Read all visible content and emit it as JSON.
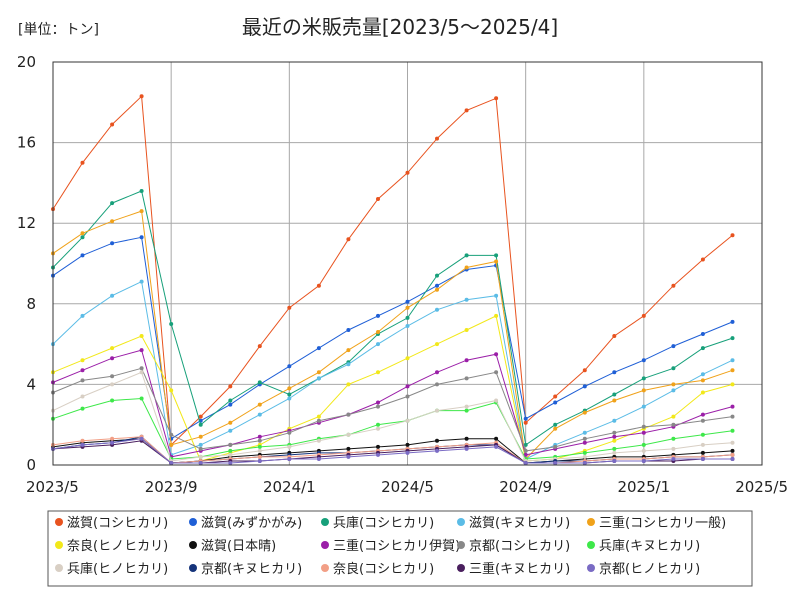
{
  "unit_label": "[単位：トン]",
  "chart_data": {
    "type": "line",
    "title": "最近の米販売量[2023/5～2025/4]",
    "xlabel": "",
    "ylabel": "",
    "ylim": [
      0,
      20
    ],
    "yticks": [
      0,
      4,
      8,
      12,
      16,
      20
    ],
    "ytick_labels": [
      "0",
      "4",
      "8",
      "12",
      "16",
      "20"
    ],
    "xlim": [
      "2023/5",
      "2025/5"
    ],
    "xticks": [
      "2023/5",
      "2023/9",
      "2024/1",
      "2024/5",
      "2024/9",
      "2025/1",
      "2025/5"
    ],
    "xtick_labels": [
      "2023/5",
      "2023/9",
      "2024/1",
      "2024/5",
      "2024/9",
      "2025/1",
      "2025/5"
    ],
    "grid": true,
    "legend_position": "bottom",
    "x": [
      "2023/5",
      "2023/6",
      "2023/7",
      "2023/8",
      "2023/9",
      "2023/10",
      "2023/11",
      "2023/12",
      "2024/1",
      "2024/2",
      "2024/3",
      "2024/4",
      "2024/5",
      "2024/6",
      "2024/7",
      "2024/8",
      "2024/9",
      "2024/10",
      "2024/11",
      "2024/12",
      "2025/1",
      "2025/2",
      "2025/3",
      "2025/4"
    ],
    "series": [
      {
        "name": "滋賀(コシヒカリ)",
        "color": "#e8531f",
        "values": [
          12.7,
          15.0,
          16.9,
          18.3,
          1.0,
          2.4,
          3.9,
          5.9,
          7.8,
          8.9,
          11.2,
          13.2,
          14.5,
          16.2,
          17.6,
          18.2,
          2.1,
          3.4,
          4.7,
          6.4,
          7.4,
          8.9,
          10.2,
          11.4
        ]
      },
      {
        "name": "滋賀(みずかがみ)",
        "color": "#1f5fd6",
        "values": [
          9.4,
          10.4,
          11.0,
          11.3,
          1.3,
          2.2,
          3.0,
          4.0,
          4.9,
          5.8,
          6.7,
          7.4,
          8.1,
          8.9,
          9.7,
          9.9,
          2.3,
          3.1,
          3.9,
          4.6,
          5.2,
          5.9,
          6.5,
          7.1
        ]
      },
      {
        "name": "兵庫(コシヒカリ)",
        "color": "#17a07a",
        "values": [
          9.8,
          11.3,
          13.0,
          13.6,
          7.0,
          2.0,
          3.2,
          4.1,
          3.5,
          4.3,
          5.1,
          6.5,
          7.3,
          9.4,
          10.4,
          10.4,
          1.0,
          2.0,
          2.7,
          3.5,
          4.3,
          4.8,
          5.8,
          6.3
        ]
      },
      {
        "name": "滋賀(キヌヒカリ)",
        "color": "#5bbce6",
        "values": [
          6.0,
          7.4,
          8.4,
          9.1,
          0.5,
          1.0,
          1.7,
          2.5,
          3.3,
          4.3,
          5.0,
          6.0,
          6.9,
          7.7,
          8.2,
          8.4,
          0.3,
          1.0,
          1.6,
          2.2,
          2.9,
          3.7,
          4.5,
          5.2
        ]
      },
      {
        "name": "三重(コシヒカリ一般)",
        "color": "#f0a21a",
        "values": [
          10.5,
          11.5,
          12.1,
          12.6,
          1.0,
          1.4,
          2.1,
          3.0,
          3.8,
          4.6,
          5.7,
          6.6,
          7.8,
          8.7,
          9.8,
          10.1,
          0.3,
          1.8,
          2.6,
          3.2,
          3.7,
          4.0,
          4.2,
          4.7
        ]
      },
      {
        "name": "奈良(ヒノヒカリ)",
        "color": "#f2e81a",
        "values": [
          4.6,
          5.2,
          5.8,
          6.4,
          3.7,
          0.2,
          0.6,
          1.0,
          1.8,
          2.4,
          4.0,
          4.6,
          5.3,
          6.0,
          6.7,
          7.4,
          0.2,
          0.3,
          0.7,
          1.2,
          1.8,
          2.4,
          3.6,
          4.0
        ]
      },
      {
        "name": "滋賀(日本晴)",
        "color": "#111111",
        "values": [
          0.9,
          1.1,
          1.2,
          1.3,
          0.1,
          0.2,
          0.4,
          0.5,
          0.6,
          0.7,
          0.8,
          0.9,
          1.0,
          1.2,
          1.3,
          1.3,
          0.1,
          0.2,
          0.3,
          0.4,
          0.4,
          0.5,
          0.6,
          0.7
        ]
      },
      {
        "name": "三重(コシヒカリ伊賀)",
        "color": "#9b1fa8",
        "values": [
          4.1,
          4.7,
          5.3,
          5.7,
          0.4,
          0.7,
          1.0,
          1.4,
          1.7,
          2.1,
          2.5,
          3.1,
          3.9,
          4.6,
          5.2,
          5.5,
          0.5,
          0.8,
          1.1,
          1.4,
          1.6,
          1.9,
          2.5,
          2.9
        ]
      },
      {
        "name": "京都(コシヒカリ)",
        "color": "#888888",
        "values": [
          3.6,
          4.2,
          4.4,
          4.8,
          1.5,
          0.8,
          1.0,
          1.2,
          1.6,
          2.2,
          2.5,
          2.9,
          3.4,
          4.0,
          4.3,
          4.6,
          0.7,
          0.9,
          1.3,
          1.6,
          1.9,
          2.0,
          2.2,
          2.4
        ]
      },
      {
        "name": "兵庫(キヌヒカリ)",
        "color": "#3ee84a",
        "values": [
          2.3,
          2.8,
          3.2,
          3.3,
          0.3,
          0.4,
          0.7,
          0.9,
          1.0,
          1.3,
          1.5,
          2.0,
          2.2,
          2.7,
          2.7,
          3.1,
          0.3,
          0.4,
          0.6,
          0.8,
          1.0,
          1.3,
          1.5,
          1.7
        ]
      },
      {
        "name": "兵庫(ヒノヒカリ)",
        "color": "#d8cfc4",
        "values": [
          2.7,
          3.4,
          4.0,
          4.6,
          0.2,
          0.4,
          0.5,
          0.7,
          0.9,
          1.2,
          1.5,
          1.8,
          2.2,
          2.7,
          2.9,
          3.2,
          0.2,
          0.3,
          0.4,
          0.6,
          0.7,
          0.8,
          1.0,
          1.1
        ]
      },
      {
        "name": "京都(キヌヒカリ)",
        "color": "#15337a",
        "values": [
          0.8,
          1.0,
          1.1,
          1.4,
          0.1,
          0.2,
          0.3,
          0.4,
          0.5,
          0.6,
          0.6,
          0.7,
          0.8,
          0.9,
          1.0,
          1.0,
          0.1,
          0.2,
          0.2,
          0.3,
          0.3,
          0.4,
          0.4,
          0.5
        ]
      },
      {
        "name": "奈良(コシヒカリ)",
        "color": "#f29f86",
        "values": [
          1.0,
          1.2,
          1.3,
          1.4,
          0.1,
          0.2,
          0.3,
          0.4,
          0.4,
          0.5,
          0.6,
          0.7,
          0.8,
          0.9,
          1.0,
          1.1,
          0.1,
          0.1,
          0.2,
          0.3,
          0.3,
          0.4,
          0.4,
          0.5
        ]
      },
      {
        "name": "三重(キヌヒカリ)",
        "color": "#4a1f5e",
        "values": [
          0.8,
          0.9,
          1.0,
          1.2,
          0.1,
          0.1,
          0.2,
          0.2,
          0.3,
          0.4,
          0.5,
          0.6,
          0.7,
          0.8,
          0.9,
          1.0,
          0.1,
          0.1,
          0.1,
          0.2,
          0.2,
          0.2,
          0.3,
          0.3
        ]
      },
      {
        "name": "京都(ヒノヒカリ)",
        "color": "#7a6bc4",
        "values": [
          0.8,
          1.0,
          1.1,
          1.3,
          0.1,
          0.1,
          0.1,
          0.2,
          0.3,
          0.3,
          0.4,
          0.5,
          0.6,
          0.7,
          0.8,
          0.9,
          0.1,
          0.1,
          0.1,
          0.2,
          0.2,
          0.3,
          0.3,
          0.3
        ]
      }
    ]
  }
}
